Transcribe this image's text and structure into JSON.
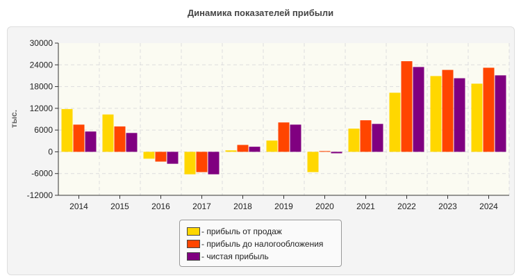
{
  "chart_data": {
    "type": "bar",
    "title": "Динамика показателей прибыли",
    "ylabel": "тыс.",
    "ylim": [
      -12000,
      30000
    ],
    "yticks": [
      30000,
      24000,
      18000,
      12000,
      6000,
      0,
      -6000,
      -12000
    ],
    "grid": true,
    "legend_placement": "bottom",
    "categories": [
      "2014",
      "2015",
      "2016",
      "2017",
      "2018",
      "2019",
      "2020",
      "2021",
      "2022",
      "2023",
      "2024"
    ],
    "series": [
      {
        "name": "- прибыль от продаж",
        "color": "#ffd700",
        "values": [
          11800,
          10300,
          -1900,
          -6200,
          400,
          3100,
          -5600,
          6400,
          16300,
          20900,
          18800
        ]
      },
      {
        "name": "- прибыль до налогообложения",
        "color": "#ff4500",
        "values": [
          7500,
          7000,
          -2700,
          -5600,
          1900,
          8100,
          200,
          8700,
          25000,
          22600,
          23200
        ]
      },
      {
        "name": "- чистая прибыль",
        "color": "#800080",
        "values": [
          5600,
          5200,
          -3300,
          -6200,
          1400,
          7500,
          -400,
          7700,
          23400,
          20300,
          21100
        ]
      }
    ]
  }
}
